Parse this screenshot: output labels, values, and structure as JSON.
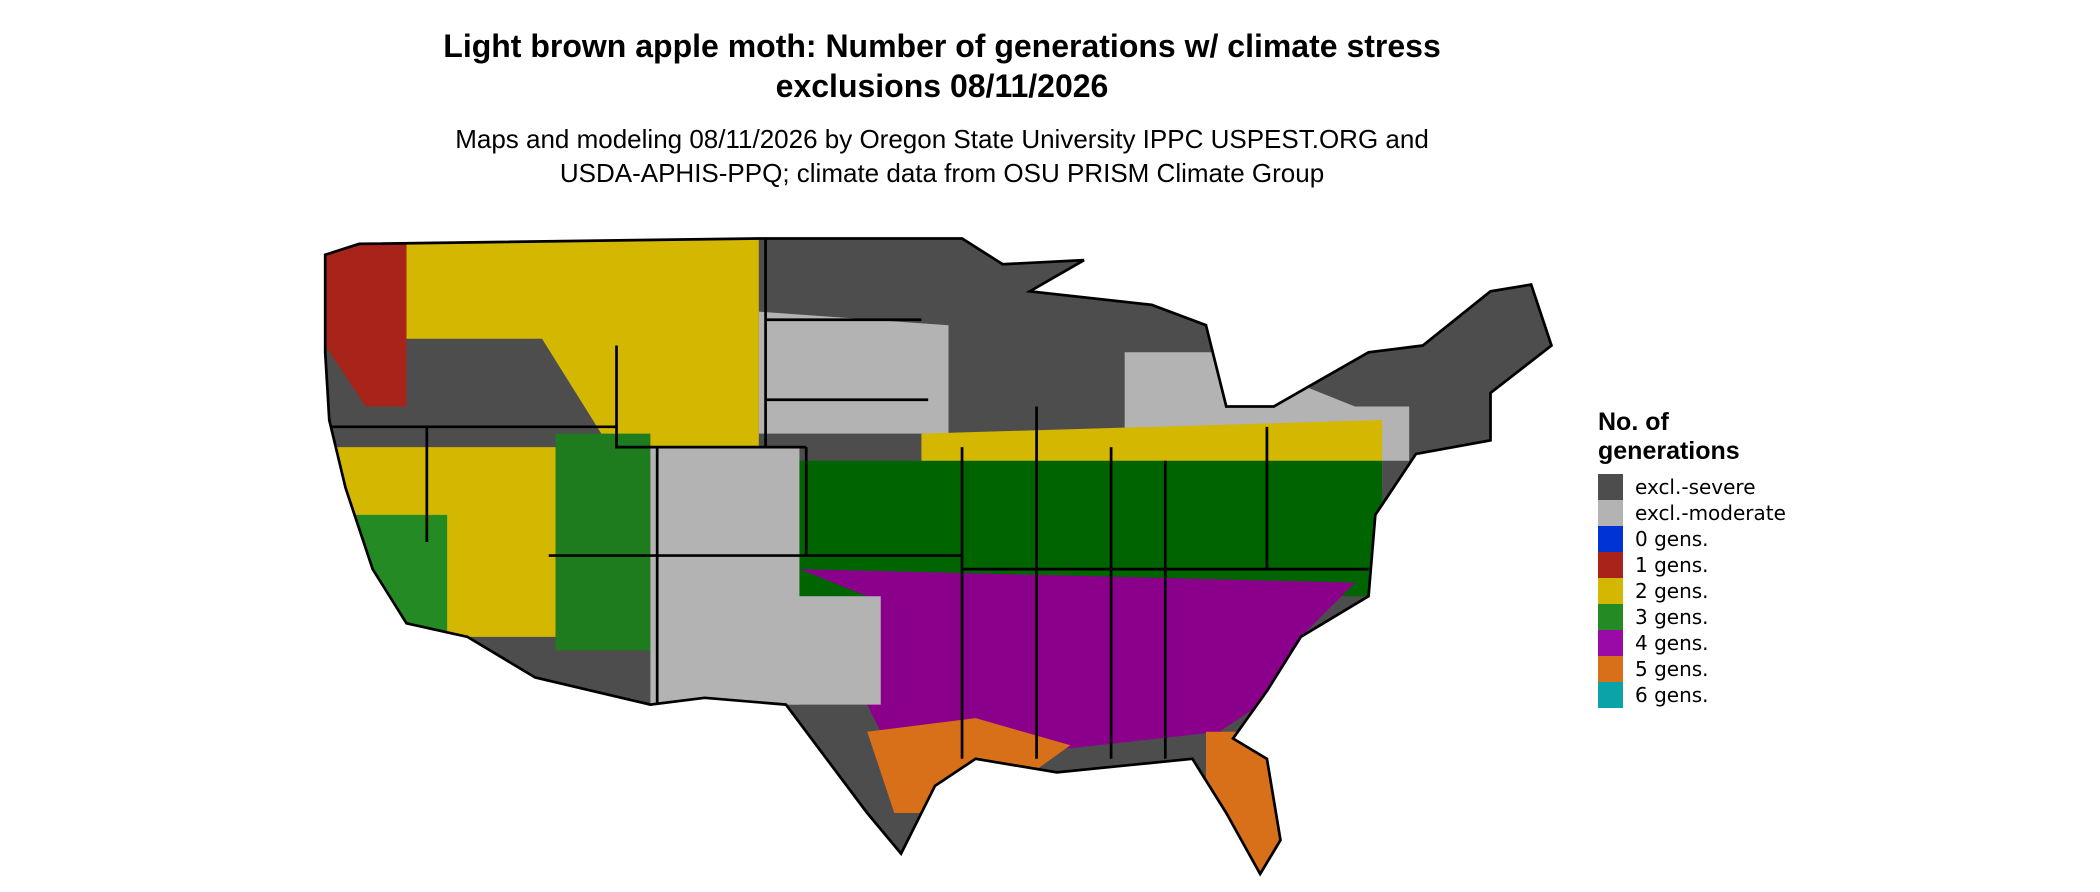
{
  "title": [
    "Light brown apple moth: Number of generations w/ climate stress",
    "exclusions 08/11/2026"
  ],
  "subtitle": [
    "Maps and modeling 08/11/2026 by Oregon State University IPPC USPEST.ORG and",
    "USDA-APHIS-PPQ; climate data from OSU PRISM Climate Group"
  ],
  "legend": {
    "title": "No. of generations",
    "items": [
      {
        "label": "excl.-severe",
        "color": "#4d4d4d"
      },
      {
        "label": "excl.-moderate",
        "color": "#b3b3b3"
      },
      {
        "label": "0 gens.",
        "color": "#0033d6"
      },
      {
        "label": "1 gens.",
        "color": "#a8231a"
      },
      {
        "label": "2 gens.",
        "color": "#d4b700"
      },
      {
        "label": "3 gens.",
        "color": "#248a24"
      },
      {
        "label": "4 gens.",
        "color": "#9a0aa6"
      },
      {
        "label": "5 gens.",
        "color": "#d8701a"
      },
      {
        "label": "6 gens.",
        "color": "#0aa3a8"
      }
    ]
  }
}
